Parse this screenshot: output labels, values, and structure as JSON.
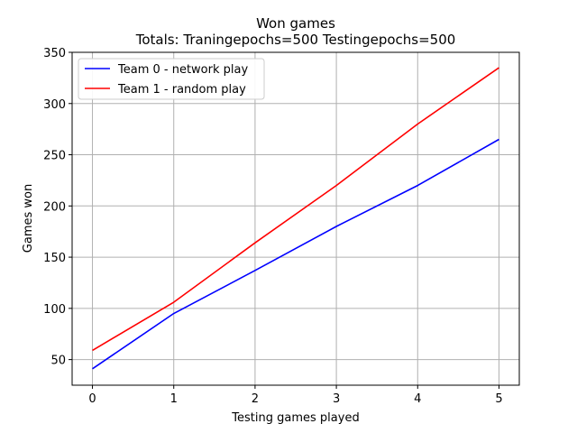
{
  "chart_data": {
    "type": "line",
    "title": "Won games",
    "subtitle": "Totals: Traningepochs=500 Testingepochs=500",
    "xlabel": "Testing games played",
    "ylabel": "Games won",
    "x": [
      0,
      1,
      2,
      3,
      4,
      5
    ],
    "xlim": [
      -0.25,
      5.25
    ],
    "ylim": [
      25,
      350
    ],
    "xticks": [
      0,
      1,
      2,
      3,
      4,
      5
    ],
    "yticks": [
      50,
      100,
      150,
      200,
      250,
      300,
      350
    ],
    "grid": true,
    "legend_position": "top-left",
    "series": [
      {
        "name": "Team 0 - network play",
        "color": "#0000ff",
        "values": [
          41,
          95,
          137,
          180,
          220,
          265
        ]
      },
      {
        "name": "Team 1 - random play",
        "color": "#ff0000",
        "values": [
          59,
          106,
          164,
          220,
          280,
          335
        ]
      }
    ]
  }
}
